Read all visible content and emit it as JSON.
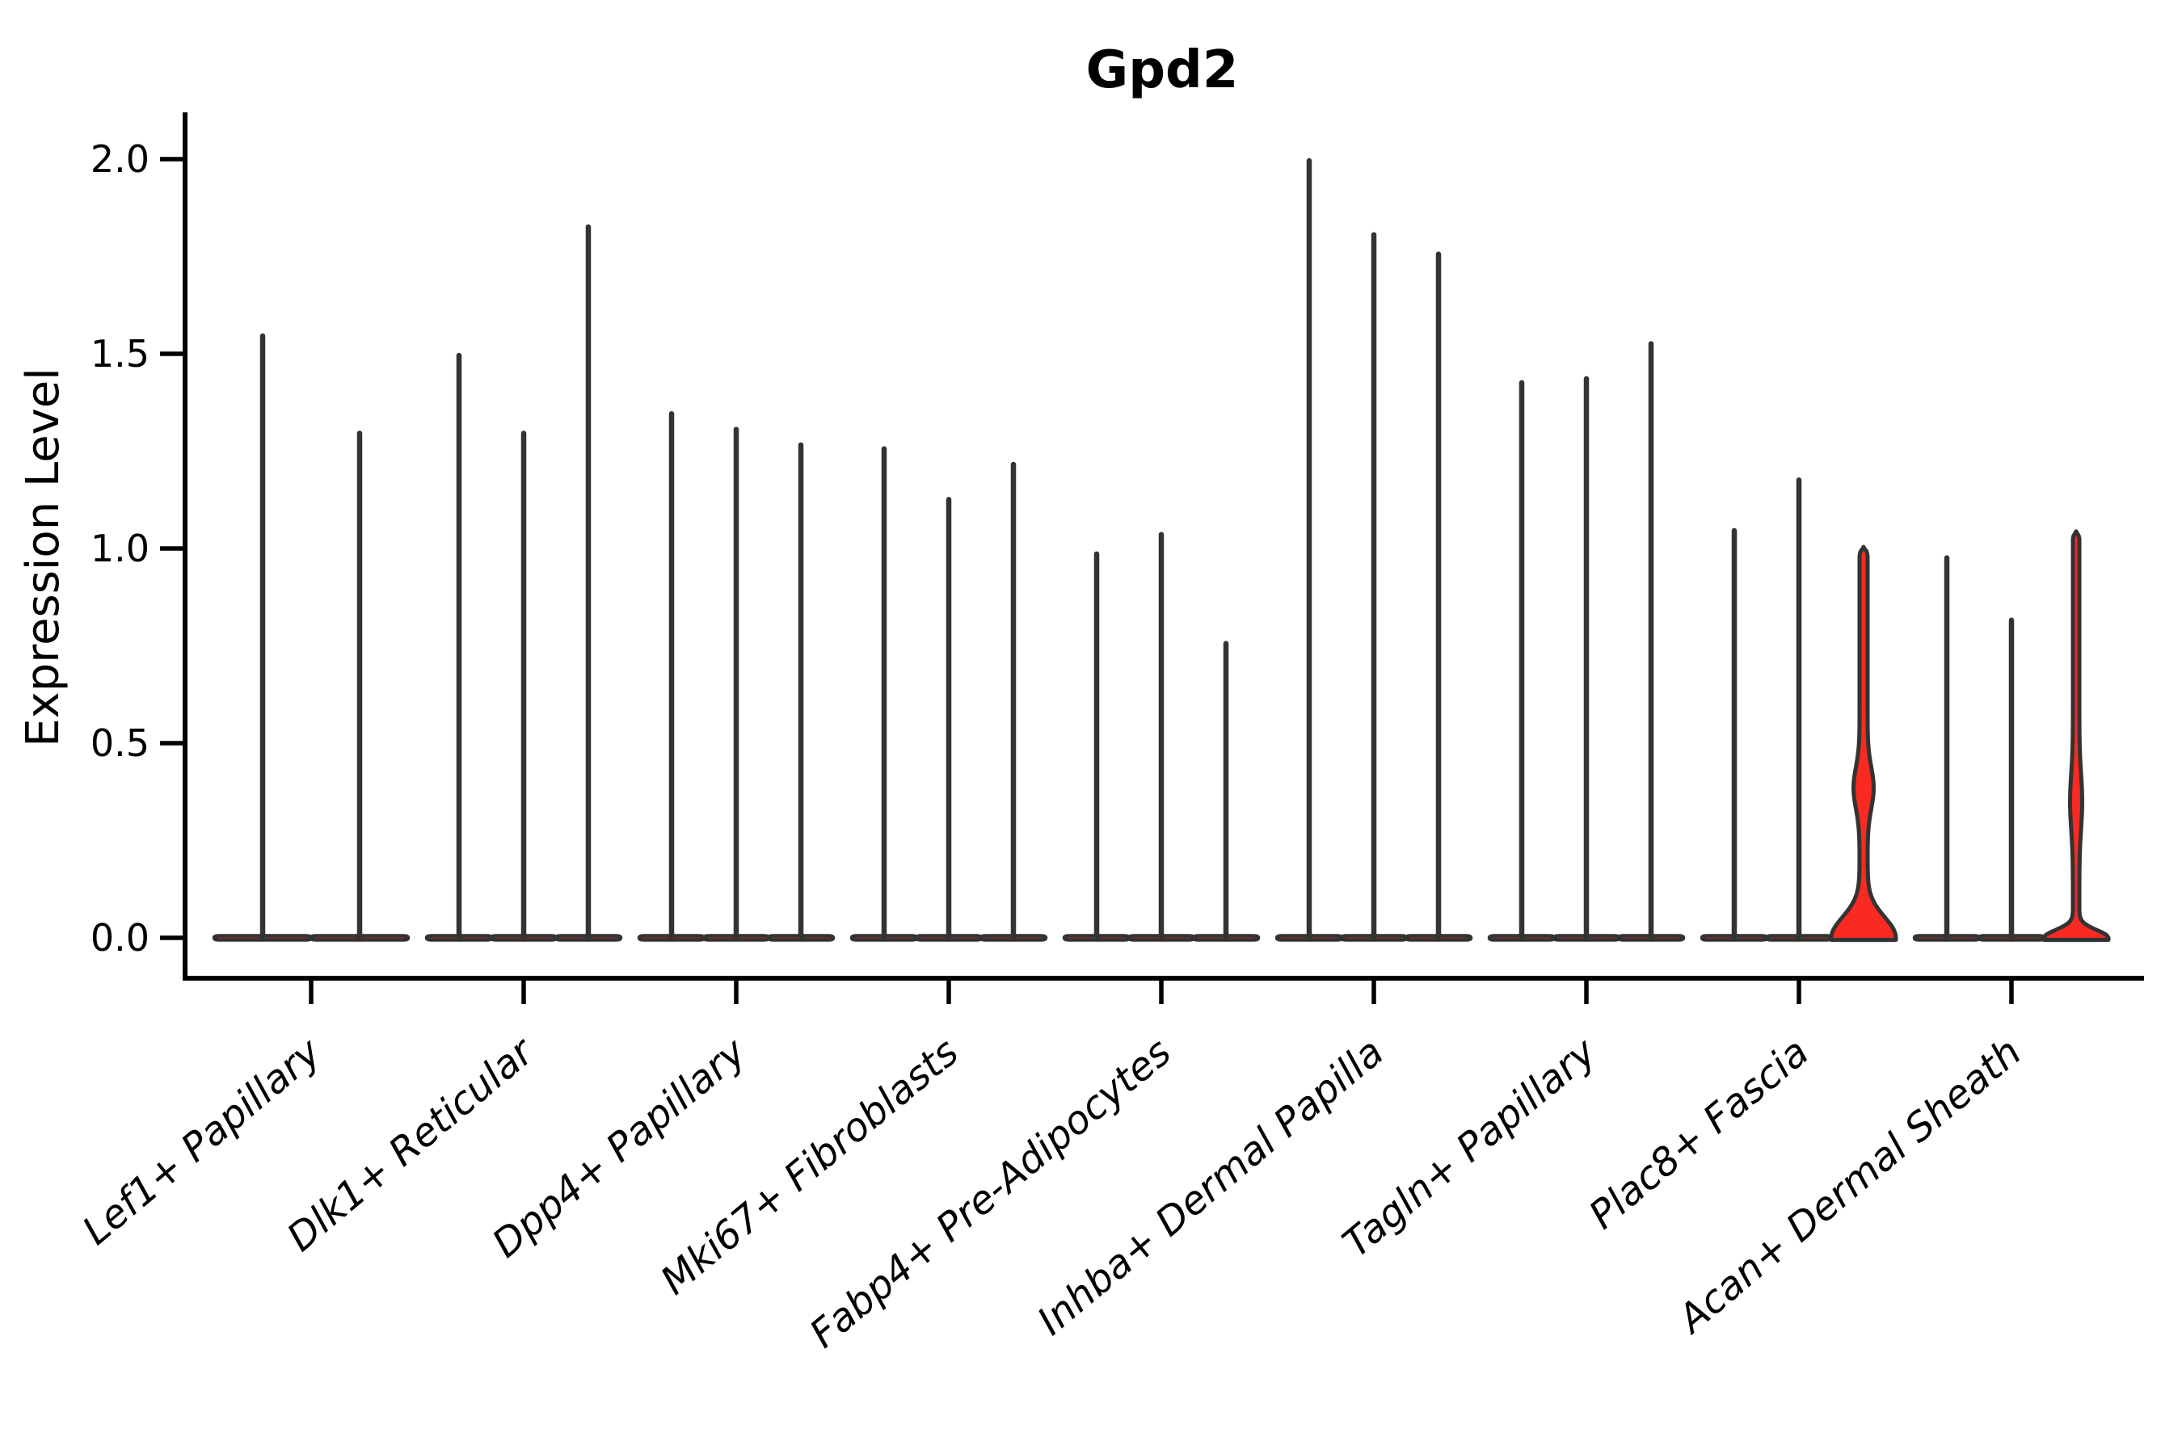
{
  "figure": {
    "title": "Gpd2",
    "ylabel": "Expression Level"
  },
  "chart_data": {
    "type": "violin",
    "title": "Gpd2",
    "xlabel": "",
    "ylabel": "Expression Level",
    "ytick_labels": [
      "0.0",
      "0.5",
      "1.0",
      "1.5",
      "2.0"
    ],
    "ytick_values": [
      0.0,
      0.5,
      1.0,
      1.5,
      2.0
    ],
    "ylim": [
      -0.1,
      2.12
    ],
    "grid": false,
    "legend_position": "none",
    "fill_color": "#f92a21",
    "outline_color": "#333333",
    "axis_color": "#000000",
    "categories": [
      "Lef1+ Papillary",
      "Dlk1+ Reticular",
      "Dpp4+ Papillary",
      "Mki67+ Fibroblasts",
      "Fabp4+ Pre-Adipocytes",
      "Inhba+ Dermal Papilla",
      "Tagln+ Papillary",
      "Plac8+ Fascia",
      "Acan+ Dermal Sheath"
    ],
    "groups": [
      {
        "label": "Lef1+ Papillary",
        "violins": [
          {
            "max": 1.55
          },
          {
            "max": 1.3
          }
        ]
      },
      {
        "label": "Dlk1+ Reticular",
        "violins": [
          {
            "max": 1.5
          },
          {
            "max": 1.3
          },
          {
            "max": 1.83
          }
        ]
      },
      {
        "label": "Dpp4+ Papillary",
        "violins": [
          {
            "max": 1.35
          },
          {
            "max": 1.31
          },
          {
            "max": 1.27
          }
        ]
      },
      {
        "label": "Mki67+ Fibroblasts",
        "violins": [
          {
            "max": 1.26
          },
          {
            "max": 1.13
          },
          {
            "max": 1.22
          }
        ]
      },
      {
        "label": "Fabp4+ Pre-Adipocytes",
        "violins": [
          {
            "max": 0.99
          },
          {
            "max": 1.04
          },
          {
            "max": 0.76
          }
        ]
      },
      {
        "label": "Inhba+ Dermal Papilla",
        "violins": [
          {
            "max": 2.0
          },
          {
            "max": 1.81
          },
          {
            "max": 1.76
          }
        ]
      },
      {
        "label": "Tagln+ Papillary",
        "violins": [
          {
            "max": 1.43
          },
          {
            "max": 1.44
          },
          {
            "max": 1.53
          }
        ]
      },
      {
        "label": "Plac8+ Fascia",
        "violins": [
          {
            "max": 1.05
          },
          {
            "max": 1.18
          },
          {
            "max": 1.0,
            "base_peak": 0.155,
            "base_sigma": 0.075,
            "bulge_center": 0.385,
            "bulge_sigma": 0.075,
            "bulge_halfwidth": 7.5,
            "stem_halfwidth": 5
          }
        ]
      },
      {
        "label": "Acan+ Dermal Sheath",
        "violins": [
          {
            "max": 0.98
          },
          {
            "max": 0.82
          },
          {
            "max": 1.04,
            "base_peak": 0.06,
            "base_sigma": 0.028,
            "bulge_center": 0.35,
            "bulge_sigma": 0.1,
            "bulge_halfwidth": 3.5,
            "stem_halfwidth": 4
          }
        ]
      }
    ]
  }
}
